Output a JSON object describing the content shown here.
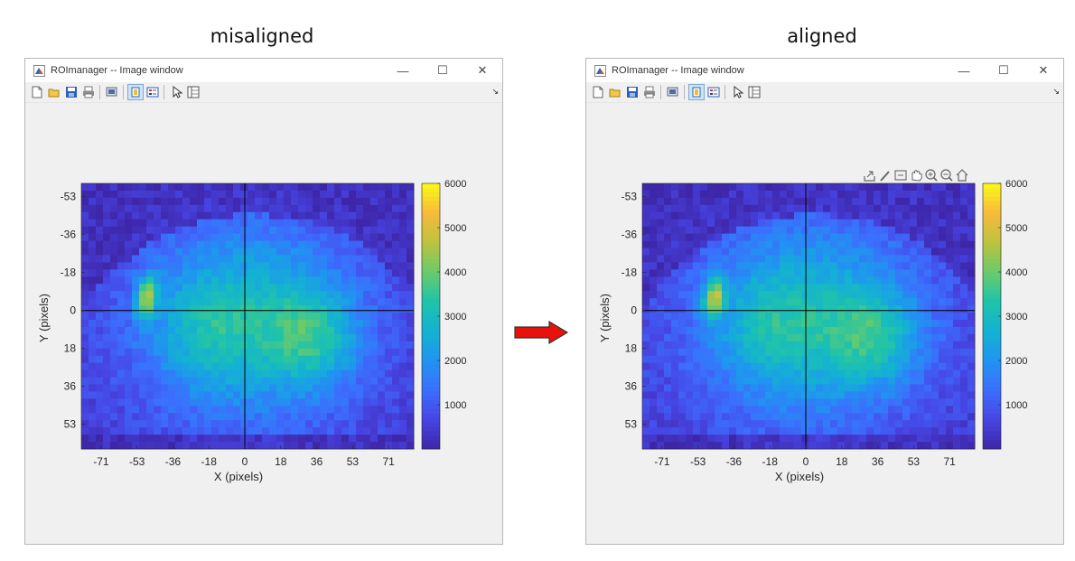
{
  "panels": [
    {
      "heading": "misaligned",
      "window_title": "ROImanager -- Image window",
      "x_label": "X (pixels)",
      "y_label": "Y (pixels)",
      "x_ticks": [
        "-71",
        "-53",
        "-36",
        "-18",
        "0",
        "18",
        "36",
        "53",
        "71"
      ],
      "y_ticks": [
        "-53",
        "-36",
        "-18",
        "0",
        "18",
        "36",
        "53"
      ],
      "colorbar_ticks": [
        "6000",
        "5000",
        "4000",
        "3000",
        "2000",
        "1000"
      ],
      "axes_toolbar_visible": false
    },
    {
      "heading": "aligned",
      "window_title": "ROImanager -- Image window",
      "x_label": "X (pixels)",
      "y_label": "Y (pixels)",
      "x_ticks": [
        "-71",
        "-53",
        "-36",
        "-18",
        "0",
        "18",
        "36",
        "53",
        "71"
      ],
      "y_ticks": [
        "-53",
        "-36",
        "-18",
        "0",
        "18",
        "36",
        "53"
      ],
      "colorbar_ticks": [
        "6000",
        "5000",
        "4000",
        "3000",
        "2000",
        "1000"
      ],
      "axes_toolbar_visible": true
    }
  ],
  "window_controls": {
    "minimize": "—",
    "maximize": "☐",
    "close": "✕"
  },
  "toolbar_icons": [
    "new-figure-icon",
    "open-file-icon",
    "save-icon",
    "print-icon",
    "print-preview-icon",
    "colorbar-toggle-icon",
    "legend-toggle-icon",
    "pointer-icon",
    "property-inspector-icon"
  ],
  "axes_toolbar_icons": [
    "export-icon",
    "brush-icon",
    "datatip-icon",
    "pan-icon",
    "zoom-in-icon",
    "zoom-out-icon",
    "home-icon"
  ],
  "colormap": [
    "#3e26a8",
    "#4745e4",
    "#3b6ffd",
    "#1f95f0",
    "#14b2d2",
    "#1fc3aa",
    "#6bcb6a",
    "#bdc33e",
    "#f7ba3c",
    "#f9fb15"
  ],
  "colorbar_range": [
    0,
    6000
  ],
  "arrow_color": "#e8120c",
  "grid_line_color": "#000000"
}
